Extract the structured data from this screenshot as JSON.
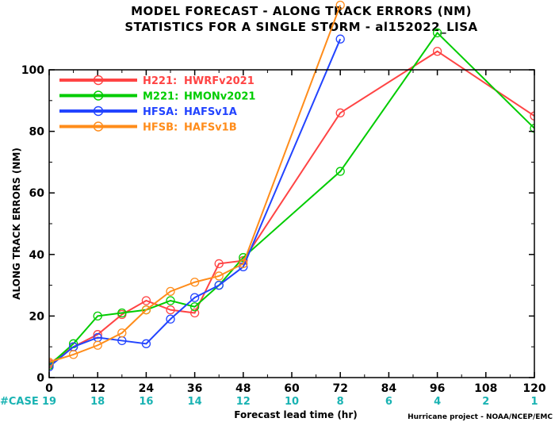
{
  "chart_data": {
    "type": "line",
    "title": "MODEL FORECAST - ALONG TRACK ERRORS (NM)",
    "subtitle": "STATISTICS FOR A SINGLE STORM - al152022_LISA",
    "xlabel": "Forecast lead time (hr)",
    "ylabel": "ALONG TRACK ERRORS (NM)",
    "xlim": [
      0,
      120
    ],
    "ylim": [
      0,
      100
    ],
    "xticks": [
      0,
      12,
      24,
      36,
      48,
      60,
      72,
      84,
      96,
      108,
      120
    ],
    "yticks": [
      0,
      20,
      40,
      60,
      80,
      100
    ],
    "grid": false,
    "legend_position": "top-left",
    "case_label": "#CASE",
    "cases": [
      19,
      18,
      16,
      14,
      12,
      10,
      8,
      6,
      4,
      2,
      1
    ],
    "case_color": "#1ab3b3",
    "credit": "Hurricane project - NOAA/NCEP/EMC",
    "series": [
      {
        "name": "H221: HWRFv2021",
        "legend_id": "H221:",
        "legend_model": "HWRFv2021",
        "color": "#ff4444",
        "x": [
          0,
          6,
          12,
          18,
          24,
          30,
          36,
          42,
          48,
          72,
          96,
          120
        ],
        "y": [
          4.5,
          10,
          14,
          20.5,
          25,
          22,
          21,
          37,
          38,
          86,
          106,
          85
        ]
      },
      {
        "name": "M221: HMONv2021",
        "legend_id": "M221:",
        "legend_model": "HMONv2021",
        "color": "#00cc00",
        "x": [
          0,
          6,
          12,
          18,
          24,
          30,
          36,
          42,
          48,
          72,
          96,
          120
        ],
        "y": [
          4,
          11,
          20,
          21,
          22,
          25,
          23,
          30,
          39,
          67,
          112,
          81
        ]
      },
      {
        "name": "HFSA: HAFSv1A",
        "legend_id": "HFSA:",
        "legend_model": "HAFSv1A",
        "color": "#2244ff",
        "x": [
          0,
          6,
          12,
          18,
          24,
          30,
          36,
          42,
          48,
          72
        ],
        "y": [
          3.5,
          10,
          13,
          12,
          11,
          19,
          26,
          30,
          36,
          110
        ]
      },
      {
        "name": "HFSB: HAFSv1B",
        "legend_id": "HFSB:",
        "legend_model": "HAFSv1B",
        "color": "#ff8c1a",
        "x": [
          0,
          6,
          12,
          18,
          24,
          30,
          36,
          42,
          48,
          72
        ],
        "y": [
          5,
          7.5,
          10.5,
          14.5,
          22,
          28,
          31,
          33,
          37,
          121
        ]
      }
    ]
  }
}
